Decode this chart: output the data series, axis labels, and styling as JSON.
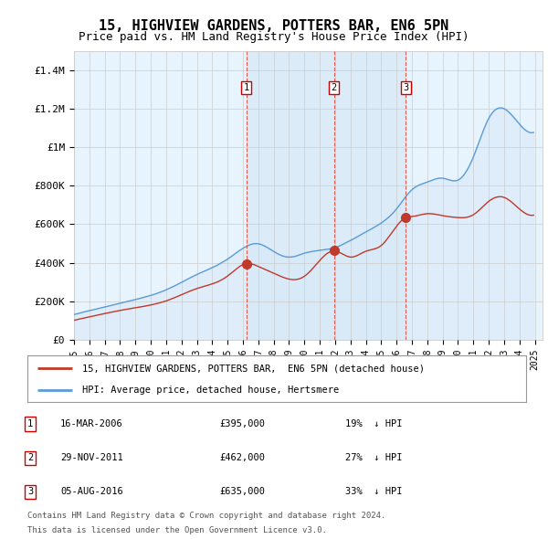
{
  "title": "15, HIGHVIEW GARDENS, POTTERS BAR, EN6 5PN",
  "subtitle": "Price paid vs. HM Land Registry's House Price Index (HPI)",
  "title_fontsize": 11,
  "subtitle_fontsize": 9,
  "xlim_start": 1995.0,
  "xlim_end": 2025.5,
  "ylim": [
    0,
    1500000
  ],
  "yticks": [
    0,
    200000,
    400000,
    600000,
    800000,
    1000000,
    1200000,
    1400000
  ],
  "ytick_labels": [
    "£0",
    "£200K",
    "£400K",
    "£600K",
    "£800K",
    "£1M",
    "£1.2M",
    "£1.4M"
  ],
  "xticks": [
    1995,
    1996,
    1997,
    1998,
    1999,
    2000,
    2001,
    2002,
    2003,
    2004,
    2005,
    2006,
    2007,
    2008,
    2009,
    2010,
    2011,
    2012,
    2013,
    2014,
    2015,
    2016,
    2017,
    2018,
    2019,
    2020,
    2021,
    2022,
    2023,
    2024,
    2025
  ],
  "hpi_color": "#5b9bd5",
  "hpi_fill_color": "#d6e8f7",
  "price_color": "#c0392b",
  "dashed_line_color": "#e74c3c",
  "shade_color": "#ddeeff",
  "grid_color": "#cccccc",
  "background_color": "#ffffff",
  "legend_label_red": "15, HIGHVIEW GARDENS, POTTERS BAR,  EN6 5PN (detached house)",
  "legend_label_blue": "HPI: Average price, detached house, Hertsmere",
  "sales": [
    {
      "num": 1,
      "date": "16-MAR-2006",
      "year": 2006.21,
      "price": 395000,
      "pct": "19%",
      "dir": "↓"
    },
    {
      "num": 2,
      "date": "29-NOV-2011",
      "year": 2011.92,
      "price": 462000,
      "pct": "27%",
      "dir": "↓"
    },
    {
      "num": 3,
      "date": "05-AUG-2016",
      "year": 2016.6,
      "price": 635000,
      "pct": "33%",
      "dir": "↓"
    }
  ],
  "footnote1": "Contains HM Land Registry data © Crown copyright and database right 2024.",
  "footnote2": "This data is licensed under the Open Government Licence v3.0."
}
